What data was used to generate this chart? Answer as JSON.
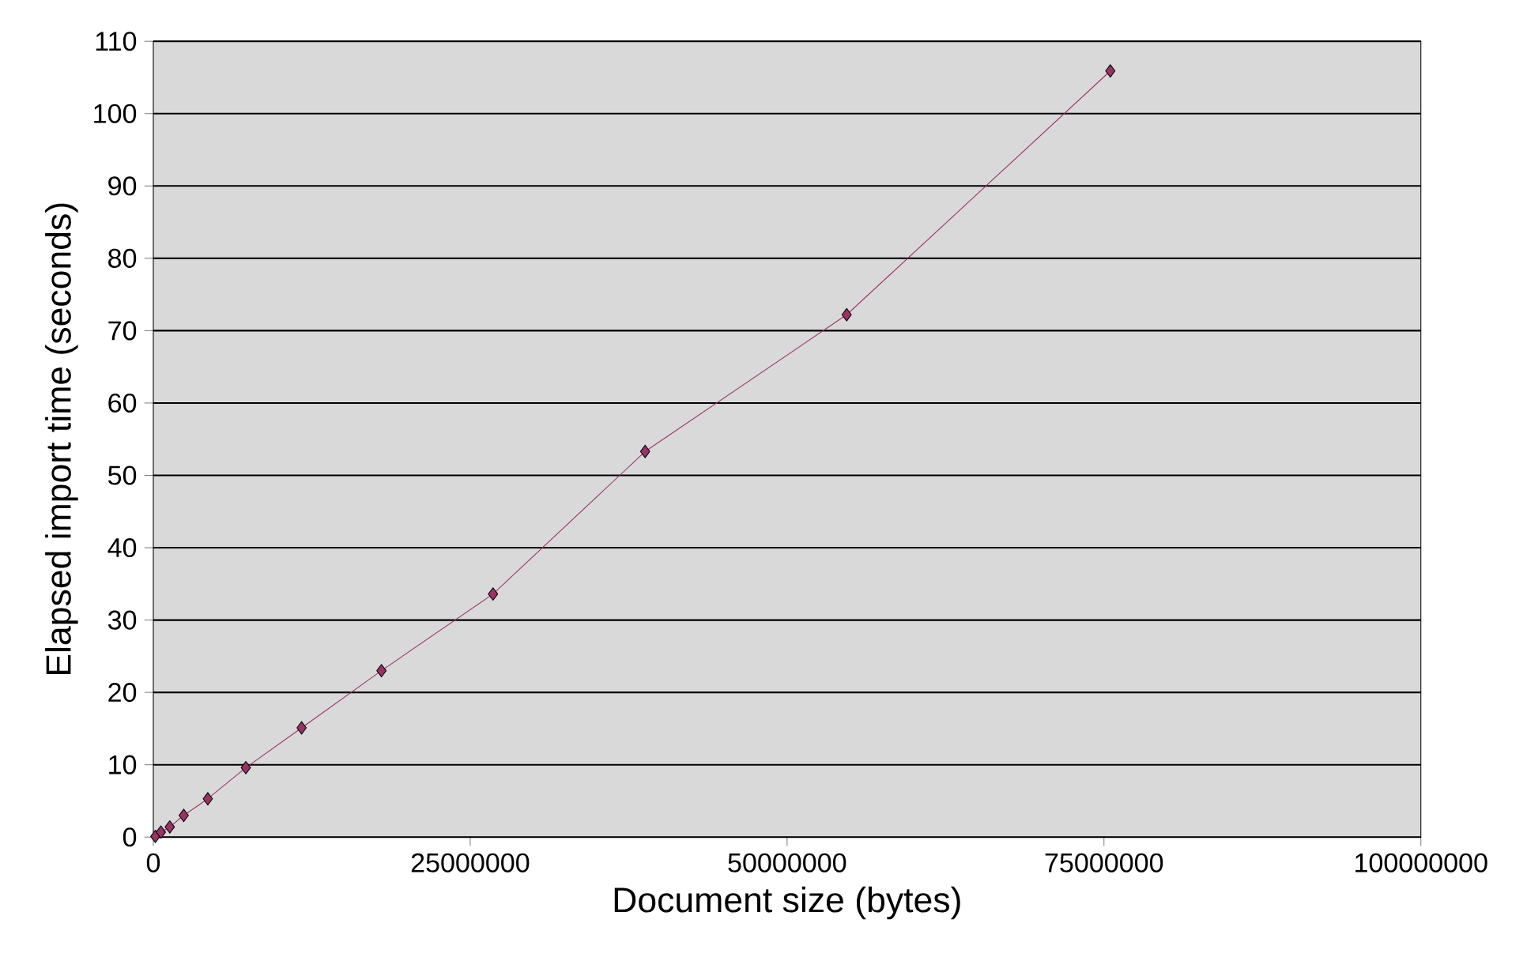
{
  "chart_data": {
    "type": "line",
    "xlabel": "Document size (bytes)",
    "ylabel": "Elapsed import time (seconds)",
    "x": [
      160000,
      600000,
      1300000,
      2400000,
      4300000,
      7300000,
      11700000,
      18000000,
      26800000,
      38800000,
      54700000,
      75500000
    ],
    "series": [
      {
        "color": "#993366",
        "values": [
          0.1,
          0.7,
          1.4,
          3.0,
          5.3,
          9.6,
          15.1,
          23.0,
          33.6,
          53.3,
          72.2,
          105.9
        ]
      }
    ],
    "xlim": [
      0,
      100000000
    ],
    "xticks": [
      0,
      25000000,
      50000000,
      75000000,
      100000000
    ],
    "ylim": [
      0,
      110
    ],
    "yticks": [
      0,
      10,
      20,
      30,
      40,
      50,
      60,
      70,
      80,
      90,
      100,
      110
    ],
    "grid": "y",
    "marker": "diamond",
    "line_style": "solid"
  }
}
